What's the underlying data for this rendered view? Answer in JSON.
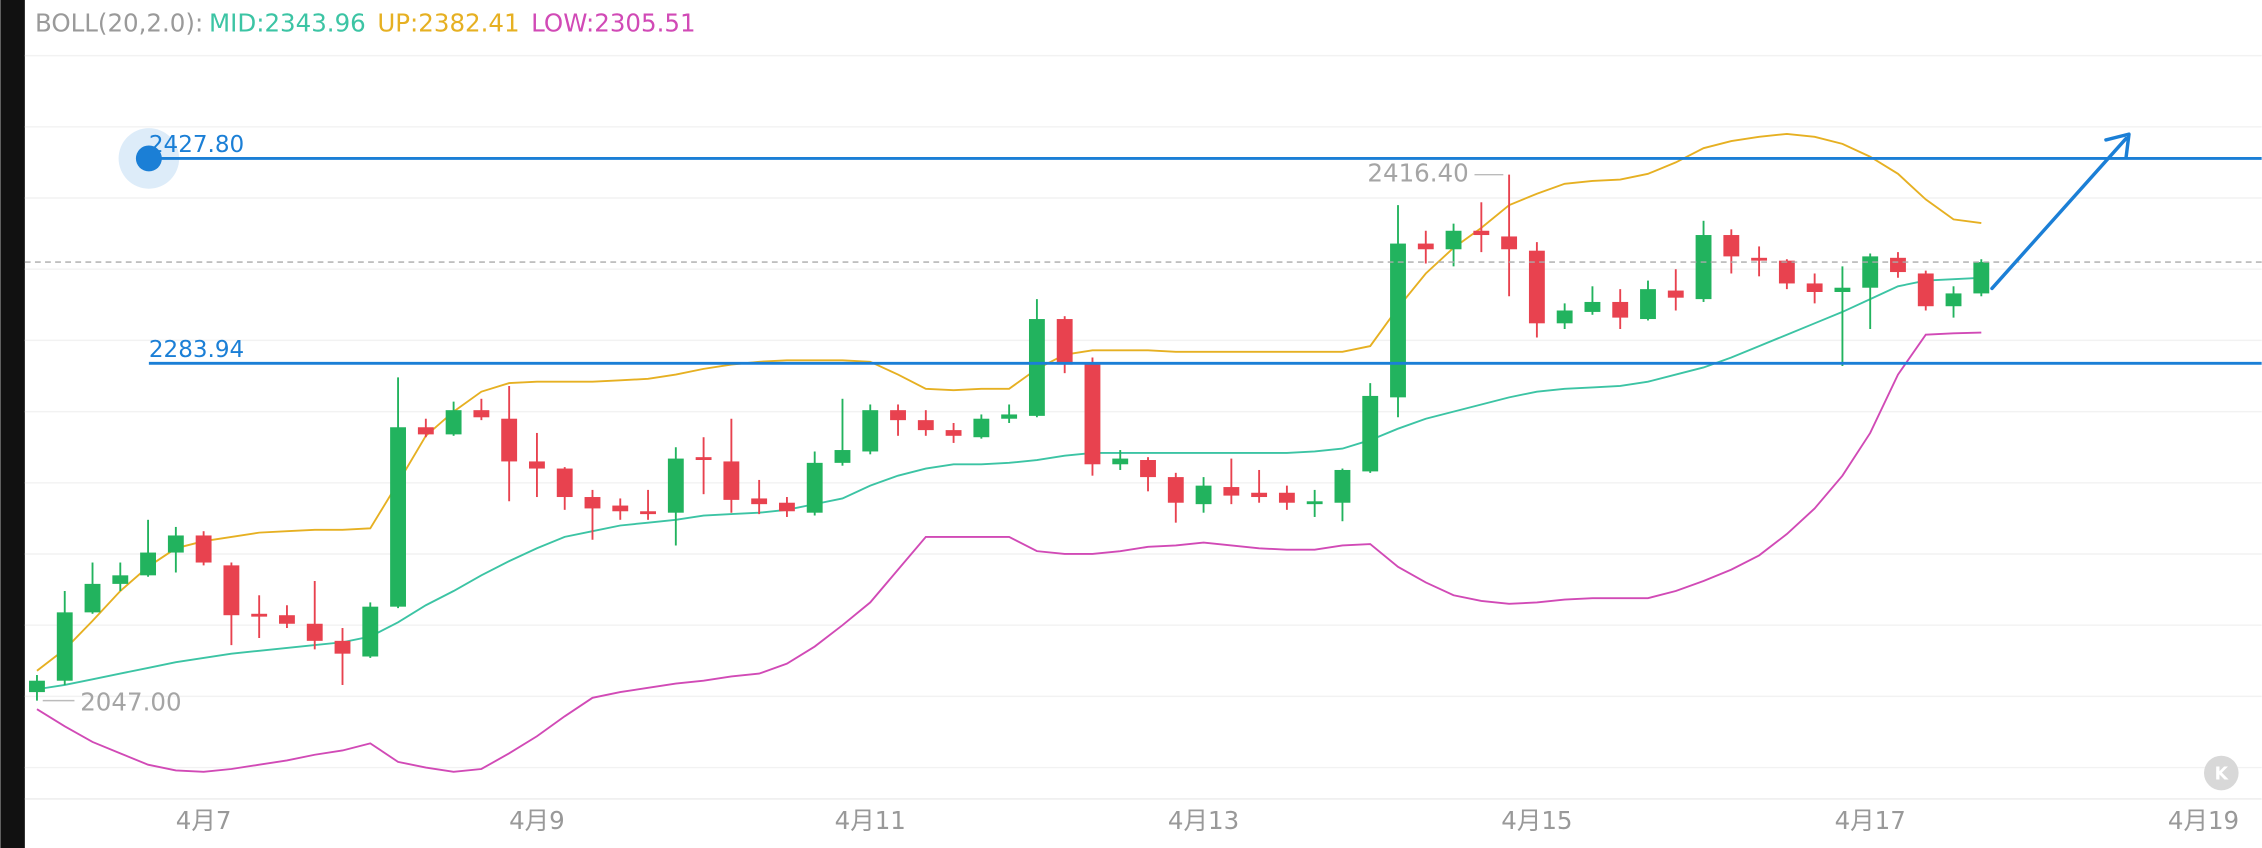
{
  "chart_data": {
    "type": "candlestick",
    "indicator": "BOLL(20,2.0):",
    "categories": [
      null,
      null,
      null,
      null,
      null,
      null,
      "4月7",
      null,
      null,
      null,
      null,
      null,
      null,
      null,
      null,
      null,
      null,
      null,
      "4月9",
      null,
      null,
      null,
      null,
      null,
      null,
      null,
      null,
      null,
      null,
      null,
      "4月11",
      null,
      null,
      null,
      null,
      null,
      null,
      null,
      null,
      null,
      null,
      null,
      "4月13",
      null,
      null,
      null,
      null,
      null,
      null,
      null,
      null,
      null,
      null,
      null,
      "4月15",
      null,
      null,
      null,
      null,
      null,
      null,
      null,
      null,
      null,
      null,
      null,
      "4月17",
      null,
      null,
      null,
      null,
      null,
      null,
      null,
      null,
      null,
      null,
      null,
      "4月19"
    ],
    "open": [
      2053,
      2061,
      2109,
      2129,
      2135,
      2151,
      2163,
      2142,
      2108,
      2107,
      2101,
      2089,
      2078,
      2113,
      2239,
      2234,
      2251,
      2245,
      2215,
      2210,
      2190,
      2184,
      2180,
      2179,
      2218,
      2215,
      2189,
      2186,
      2179,
      2214,
      2222,
      2251,
      2244,
      2237,
      2232,
      2245,
      2247,
      2315,
      2284,
      2213,
      2216,
      2204,
      2185,
      2197,
      2193,
      2193,
      2185,
      2186,
      2208,
      2260,
      2368,
      2364,
      2377,
      2373,
      2363,
      2312,
      2320,
      2327,
      2315,
      2335,
      2329,
      2374,
      2358,
      2356,
      2340,
      2334,
      2337,
      2358,
      2347,
      2324,
      2333,
      null,
      null,
      null,
      null,
      null,
      null,
      null,
      null
    ],
    "high": [
      2065,
      2124,
      2144,
      2144,
      2174,
      2169,
      2166,
      2144,
      2121,
      2114,
      2131,
      2098,
      2116,
      2274,
      2245,
      2257,
      2259,
      2268,
      2235,
      2211,
      2195,
      2189,
      2195,
      2225,
      2232,
      2245,
      2202,
      2190,
      2222,
      2259,
      2255,
      2255,
      2251,
      2242,
      2248,
      2255,
      2329,
      2317,
      2288,
      2223,
      2218,
      2207,
      2204,
      2217,
      2209,
      2198,
      2195,
      2210,
      2270,
      2395,
      2377,
      2382,
      2397,
      2416.4,
      2369,
      2326,
      2338,
      2336,
      2342,
      2350,
      2384,
      2378,
      2366,
      2357,
      2347,
      2352,
      2361,
      2362,
      2349,
      2338,
      2357,
      null,
      null,
      null,
      null,
      null,
      null,
      null,
      null
    ],
    "low": [
      2047,
      2058,
      2108,
      2124,
      2134,
      2137,
      2142,
      2086,
      2091,
      2098,
      2083,
      2058,
      2077,
      2112,
      2232,
      2233,
      2244,
      2187,
      2190,
      2181,
      2160,
      2174,
      2174,
      2156,
      2192,
      2179,
      2178,
      2176,
      2177,
      2212,
      2220,
      2233,
      2233,
      2228,
      2231,
      2242,
      2246,
      2277,
      2205,
      2209,
      2194,
      2172,
      2179,
      2185,
      2186,
      2181,
      2176,
      2173,
      2207,
      2246,
      2354,
      2352,
      2362,
      2331,
      2302,
      2308,
      2318,
      2308,
      2314,
      2321,
      2327,
      2347,
      2345,
      2336,
      2326,
      2282,
      2308,
      2344,
      2321,
      2316,
      2331,
      null,
      null,
      null,
      null,
      null,
      null,
      null,
      null
    ],
    "close": [
      2061,
      2109,
      2129,
      2135,
      2151,
      2163,
      2144,
      2107,
      2106,
      2101,
      2089,
      2080,
      2113,
      2239,
      2234,
      2251,
      2246,
      2215,
      2210,
      2190,
      2182,
      2180,
      2178,
      2217,
      2216,
      2188,
      2185,
      2180,
      2214,
      2223,
      2251,
      2244,
      2237,
      2233,
      2245,
      2248,
      2315,
      2283,
      2213,
      2217,
      2204,
      2186,
      2198,
      2191,
      2190,
      2186,
      2187,
      2209,
      2261,
      2368,
      2364,
      2377,
      2374,
      2364,
      2312,
      2321,
      2327,
      2316,
      2336,
      2330,
      2374,
      2359,
      2356,
      2340,
      2334,
      2337,
      2359,
      2348,
      2324,
      2333,
      2355,
      null,
      null,
      null,
      null,
      null,
      null,
      null,
      null
    ],
    "up_color": "#22b35e",
    "down_color": "#e8424f",
    "series": [
      {
        "name": "MID:2343.96",
        "color": "#3cc4a4",
        "values": [
          2055,
          2058,
          2062,
          2066,
          2070,
          2074,
          2077,
          2080,
          2082,
          2084,
          2086,
          2088,
          2092,
          2102,
          2114,
          2124,
          2135,
          2145,
          2154,
          2162,
          2166,
          2170,
          2172,
          2174,
          2177,
          2178,
          2179,
          2181,
          2185,
          2189,
          2198,
          2205,
          2210,
          2213,
          2213,
          2214,
          2216,
          2219,
          2221,
          2221,
          2221,
          2221,
          2221,
          2221,
          2221,
          2221,
          2222,
          2224,
          2230,
          2238,
          2245,
          2250,
          2255,
          2260,
          2264,
          2266,
          2267,
          2268,
          2271,
          2276,
          2281,
          2288,
          2296,
          2304,
          2312,
          2320,
          2329,
          2338,
          2342,
          2343,
          2343.96,
          null,
          null,
          null,
          null,
          null,
          null,
          null,
          null
        ]
      },
      {
        "name": "UP:2382.41",
        "color": "#e6b022",
        "values": [
          2068,
          2083,
          2103,
          2124,
          2141,
          2154,
          2159,
          2162,
          2165,
          2166,
          2167,
          2167,
          2168,
          2200,
          2233,
          2250,
          2264,
          2270,
          2271,
          2271,
          2271,
          2272,
          2273,
          2276,
          2280,
          2283,
          2285,
          2286,
          2286,
          2286,
          2285,
          2276,
          2266,
          2265,
          2266,
          2266,
          2280,
          2290,
          2293,
          2293,
          2293,
          2292,
          2292,
          2292,
          2292,
          2292,
          2292,
          2292,
          2296,
          2323,
          2347,
          2365,
          2379,
          2395,
          2403,
          2410,
          2412,
          2413,
          2417,
          2425,
          2435,
          2440,
          2443,
          2445,
          2443,
          2438,
          2429,
          2417,
          2399,
          2385,
          2382.41,
          null,
          null,
          null,
          null,
          null,
          null,
          null,
          null
        ]
      },
      {
        "name": "LOW:2305.51",
        "color": "#d14ab6",
        "values": [
          2041,
          2029,
          2018,
          2010,
          2002,
          1998,
          1997,
          1999,
          2002,
          2005,
          2009,
          2012,
          2017,
          2004,
          2000,
          1997,
          1999,
          2010,
          2022,
          2036,
          2049,
          2053,
          2056,
          2059,
          2061,
          2064,
          2066,
          2073,
          2085,
          2100,
          2116,
          2139,
          2162,
          2162,
          2162,
          2162,
          2152,
          2150,
          2150,
          2152,
          2155,
          2156,
          2158,
          2156,
          2154,
          2153,
          2153,
          2156,
          2157,
          2141,
          2130,
          2121,
          2117,
          2115,
          2116,
          2118,
          2119,
          2119,
          2119,
          2124,
          2131,
          2139,
          2149,
          2164,
          2182,
          2205,
          2235,
          2276,
          2304,
          2305,
          2305.51,
          null,
          null,
          null,
          null,
          null,
          null,
          null,
          null
        ]
      }
    ],
    "ylim": [
      1982,
      2534
    ],
    "grid_lines": [
      2000,
      2050,
      2100,
      2150,
      2200,
      2250,
      2300,
      2350,
      2400,
      2450,
      2500
    ],
    "levels": [
      {
        "value": 2427.8,
        "label": "2427.80"
      },
      {
        "value": 2283.94,
        "label": "2283.94"
      }
    ],
    "level_color": "#1b7fd6",
    "high_mark": {
      "value": 2416.4,
      "label": "2416.40"
    },
    "low_mark": {
      "value": 2047,
      "label": "2047.00"
    }
  },
  "logo": "K"
}
